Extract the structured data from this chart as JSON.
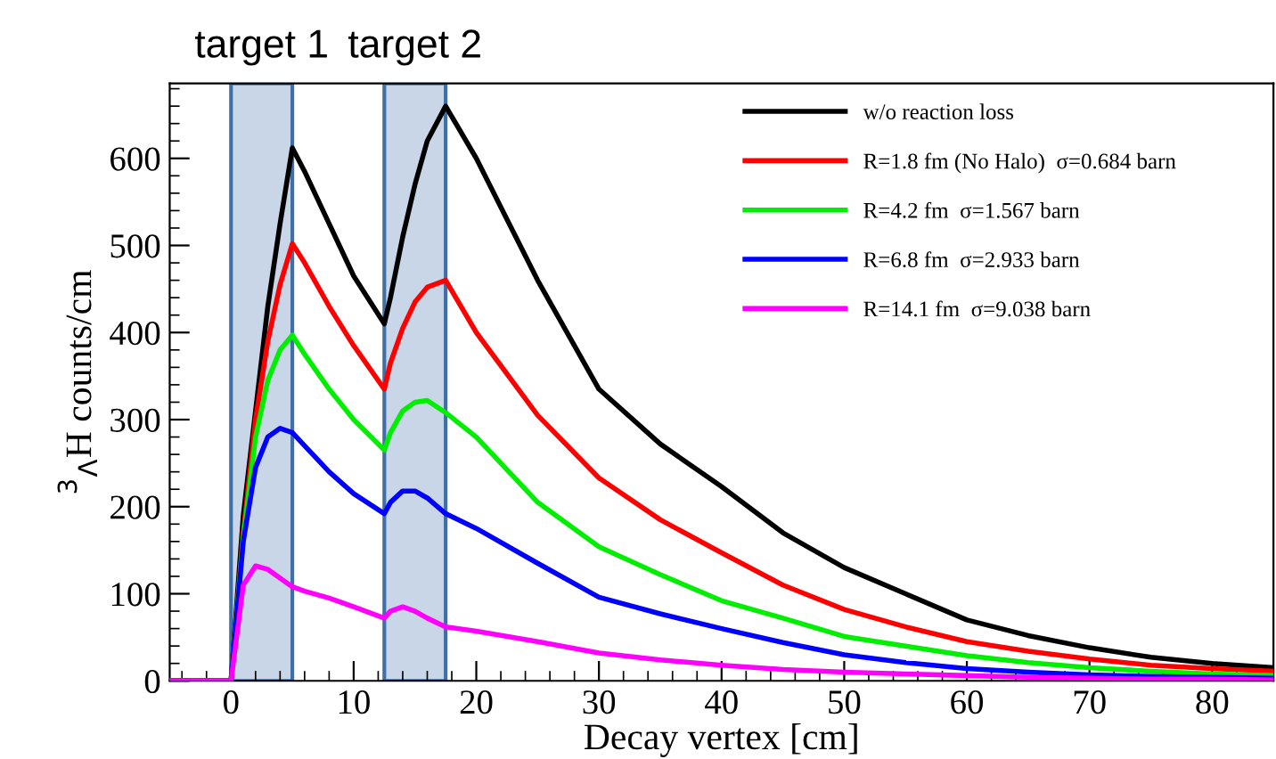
{
  "chart_data": {
    "type": "line",
    "xlabel": "Decay vertex [cm]",
    "ylabel": "$^{3}$$_{Λ}$H counts/cm",
    "xlim": [
      -5,
      85
    ],
    "ylim": [
      0,
      686
    ],
    "xticks": [
      0,
      10,
      20,
      30,
      40,
      50,
      60,
      70,
      80
    ],
    "yticks": [
      0,
      100,
      200,
      300,
      400,
      500,
      600
    ],
    "grid": false,
    "legend": "top right",
    "marker": "none",
    "line_style": "solid",
    "bands": [
      {
        "axis": "x",
        "from": 0,
        "to": 5,
        "label": "target 1",
        "color": "#c8d6e8"
      },
      {
        "axis": "x",
        "from": 12.5,
        "to": 17.5,
        "label": "target 2",
        "color": "#c8d6e8"
      }
    ],
    "x": [
      -5,
      0,
      1,
      2,
      3,
      4,
      5,
      6,
      8,
      10,
      12.5,
      13,
      14,
      15,
      16,
      17.5,
      20,
      25,
      30,
      35,
      40,
      45,
      50,
      55,
      60,
      65,
      70,
      75,
      80,
      85
    ],
    "series": [
      {
        "name": "w/o reaction loss",
        "color": "#000000",
        "values": [
          0,
          0,
          190,
          310,
          430,
          525,
          612,
          585,
          525,
          465,
          410,
          440,
          510,
          570,
          620,
          660,
          600,
          460,
          335,
          272,
          223,
          170,
          130,
          100,
          70,
          52,
          38,
          27,
          20,
          15
        ]
      },
      {
        "name": "R=1.8 fm (No Halo)  σ=0.684 barn",
        "color": "#ff0000",
        "values": [
          0,
          0,
          170,
          300,
          390,
          455,
          502,
          480,
          430,
          385,
          335,
          365,
          405,
          435,
          452,
          460,
          400,
          305,
          233,
          185,
          147,
          110,
          82,
          62,
          45,
          34,
          25,
          18,
          14,
          11
        ]
      },
      {
        "name": "R=4.2 fm  σ=1.567 barn",
        "color": "#00ee00",
        "values": [
          0,
          0,
          165,
          280,
          345,
          380,
          397,
          375,
          335,
          300,
          265,
          285,
          310,
          320,
          322,
          308,
          280,
          205,
          154,
          122,
          92,
          72,
          51,
          40,
          29,
          21,
          15,
          11,
          8,
          6
        ]
      },
      {
        "name": "R=6.8 fm  σ=2.933 barn",
        "color": "#0000ff",
        "values": [
          0,
          0,
          160,
          245,
          280,
          290,
          285,
          270,
          240,
          215,
          192,
          205,
          218,
          218,
          210,
          192,
          175,
          135,
          96,
          77,
          60,
          44,
          30,
          21,
          14,
          10,
          7,
          5,
          4,
          3
        ]
      },
      {
        "name": "R=14.1 fm  σ=9.038 barn",
        "color": "#ff00ff",
        "values": [
          0,
          0,
          110,
          132,
          128,
          118,
          108,
          103,
          95,
          85,
          72,
          80,
          85,
          80,
          72,
          62,
          57,
          45,
          32,
          24,
          18,
          13,
          10,
          8,
          6,
          4,
          3,
          2,
          2,
          1
        ]
      }
    ]
  }
}
